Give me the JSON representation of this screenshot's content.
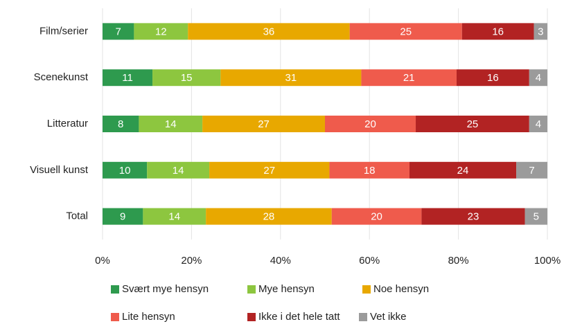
{
  "chart_data": {
    "type": "bar",
    "orientation": "horizontal",
    "stacked": "percent",
    "categories": [
      "Film/serier",
      "Scenekunst",
      "Litteratur",
      "Visuell kunst",
      "Total"
    ],
    "series": [
      {
        "name": "Svært mye hensyn",
        "color": "#2e9a4e",
        "values": [
          7,
          11,
          8,
          10,
          9
        ]
      },
      {
        "name": "Mye hensyn",
        "color": "#8dc63f",
        "values": [
          12,
          15,
          14,
          14,
          14
        ]
      },
      {
        "name": "Noe hensyn",
        "color": "#e8a800",
        "values": [
          36,
          31,
          27,
          27,
          28
        ]
      },
      {
        "name": "Lite hensyn",
        "color": "#ef5b4c",
        "values": [
          25,
          21,
          20,
          18,
          20
        ]
      },
      {
        "name": "Ikke i det hele tatt",
        "color": "#b22323",
        "values": [
          16,
          16,
          25,
          24,
          23
        ]
      },
      {
        "name": "Vet ikke",
        "color": "#9b9b9b",
        "values": [
          3,
          4,
          4,
          7,
          5
        ]
      }
    ],
    "xlim": [
      0,
      100
    ],
    "xticks": [
      {
        "value": 0,
        "label": "0%"
      },
      {
        "value": 20,
        "label": "20%"
      },
      {
        "value": 40,
        "label": "40%"
      },
      {
        "value": 60,
        "label": "60%"
      },
      {
        "value": 80,
        "label": "80%"
      },
      {
        "value": 100,
        "label": "100%"
      }
    ],
    "grid": true,
    "legend": "bottom"
  }
}
